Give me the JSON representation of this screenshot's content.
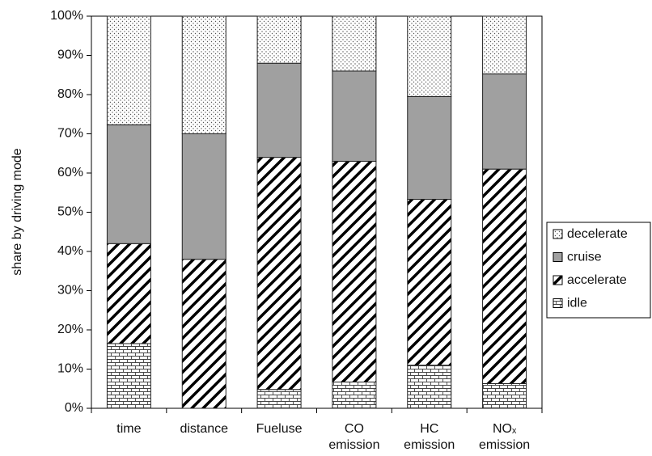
{
  "chart_data": {
    "type": "stacked_bar",
    "y_label": "share by driving mode",
    "categories": [
      [
        "time"
      ],
      [
        "distance"
      ],
      [
        "Fueluse"
      ],
      [
        "CO",
        "emission"
      ],
      [
        "HC",
        "emission"
      ],
      [
        "NOₓ",
        "emission"
      ]
    ],
    "series": [
      {
        "name": "idle",
        "color": "#ffffff",
        "pattern": "brick",
        "values": [
          16.5,
          0,
          4.8,
          6.7,
          11,
          6.3
        ]
      },
      {
        "name": "accelerate",
        "color": "#ffffff",
        "pattern": "diagonal",
        "values": [
          25.5,
          38,
          59.2,
          56.3,
          42.3,
          54.7
        ]
      },
      {
        "name": "cruise",
        "color": "#a0a0a0",
        "pattern": "solid",
        "values": [
          30.3,
          32,
          24,
          23,
          26.2,
          24.3
        ]
      },
      {
        "name": "decelerate",
        "color": "#ffffff",
        "pattern": "dots",
        "values": [
          27.7,
          30,
          12,
          14,
          20.5,
          14.7
        ]
      }
    ],
    "ylim": [
      0,
      100
    ],
    "yticks": [
      {
        "value": 0,
        "label": "0%"
      },
      {
        "value": 10,
        "label": "10%"
      },
      {
        "value": 20,
        "label": "20%"
      },
      {
        "value": 30,
        "label": "30%"
      },
      {
        "value": 40,
        "label": "40%"
      },
      {
        "value": 50,
        "label": "50%"
      },
      {
        "value": 60,
        "label": "60%"
      },
      {
        "value": 70,
        "label": "70%"
      },
      {
        "value": 80,
        "label": "80%"
      },
      {
        "value": 90,
        "label": "90%"
      },
      {
        "value": 100,
        "label": "100%"
      }
    ],
    "legend": "right"
  }
}
